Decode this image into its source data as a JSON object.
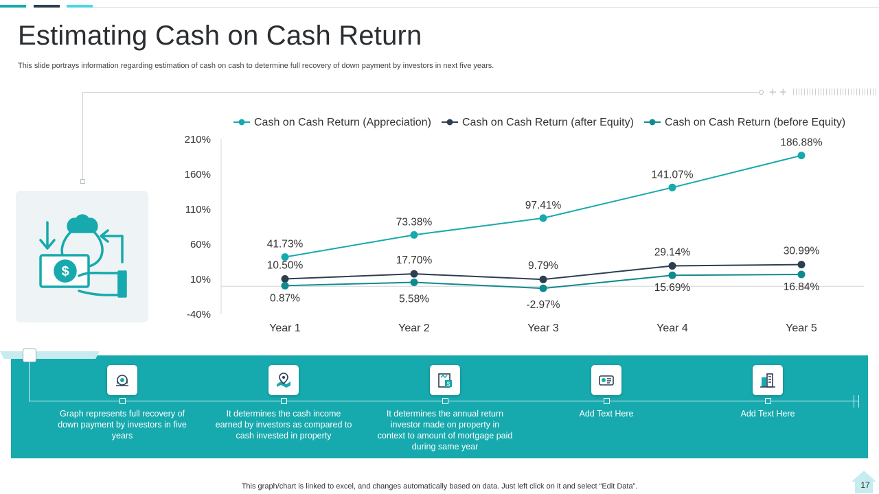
{
  "slide": {
    "title": "Estimating Cash on Cash Return",
    "subtitle": "This slide portrays information regarding estimation of cash on cash to determine full recovery of down payment by investors in next five years.",
    "footer": "This graph/chart is linked to excel,  and changes automatically based on data. Just left click on it and select “Edit Data”.",
    "page_number": "17"
  },
  "colors": {
    "teal": "#16a9ad",
    "navy": "#2d3e50",
    "dark_teal": "#0f8a8e",
    "grey": "#3d4a56",
    "accent1": "#16a9ad",
    "accent2": "#2d3e50",
    "accent3": "#4dd6e0"
  },
  "icons": [
    "money-bag-hand-icon",
    "analytics-icon",
    "map-location-icon",
    "document-dollar-icon",
    "id-card-icon",
    "city-building-icon",
    "home-icon"
  ],
  "chart_data": {
    "type": "line",
    "title": "",
    "xlabel": "",
    "ylabel": "",
    "categories": [
      "Year 1",
      "Year 2",
      "Year 3",
      "Year 4",
      "Year 5"
    ],
    "ylim": [
      -40,
      210
    ],
    "yticks": [
      -40,
      10,
      60,
      110,
      160,
      210
    ],
    "ytick_labels": [
      "-40%",
      "10%",
      "60%",
      "110%",
      "160%",
      "210%"
    ],
    "legend_position": "top",
    "series": [
      {
        "name": "Cash on Cash Return (Appreciation)",
        "color": "#16a9ad",
        "values": [
          41.73,
          73.38,
          97.41,
          141.07,
          186.88
        ],
        "labels": [
          "41.73%",
          "73.38%",
          "97.41%",
          "141.07%",
          "186.88%"
        ]
      },
      {
        "name": "Cash on Cash Return (after Equity)",
        "color": "#2d3e50",
        "values": [
          10.5,
          17.7,
          9.79,
          29.14,
          30.99
        ],
        "labels": [
          "10.50%",
          "17.70%",
          "9.79%",
          "29.14%",
          "30.99%"
        ]
      },
      {
        "name": "Cash on Cash Return (before Equity)",
        "color": "#0f8a8e",
        "values": [
          0.87,
          5.58,
          -2.97,
          15.69,
          16.84
        ],
        "labels": [
          "0.87%",
          "5.58%",
          "-2.97%",
          "15.69%",
          "16.84%"
        ]
      }
    ]
  },
  "steps": [
    {
      "text": "Graph represents full recovery  of down payment by investors in five years"
    },
    {
      "text": "It determines the cash income earned by investors as compared to cash invested in property"
    },
    {
      "text": "It determines the annual return investor made on property in context to amount of mortgage paid during same year"
    },
    {
      "text": "Add Text Here"
    },
    {
      "text": "Add Text Here"
    }
  ]
}
